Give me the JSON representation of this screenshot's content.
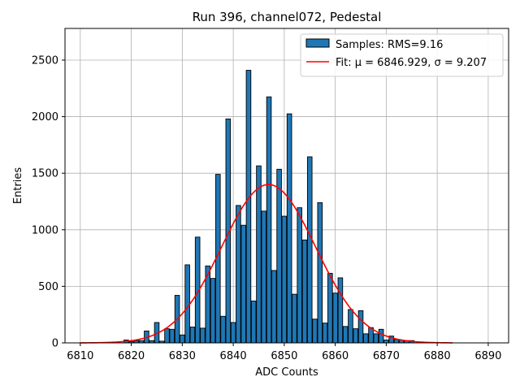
{
  "chart_data": {
    "type": "bar",
    "title": "Run 396, channel072, Pedestal",
    "xlabel": "ADC Counts",
    "ylabel": "Entries",
    "xlim": [
      6807,
      6894
    ],
    "ylim": [
      0,
      2780
    ],
    "xticks": [
      6810,
      6820,
      6830,
      6840,
      6850,
      6860,
      6870,
      6880,
      6890
    ],
    "yticks": [
      0,
      500,
      1000,
      1500,
      2000,
      2500
    ],
    "grid": true,
    "legend_position": "top-right",
    "legend": [
      {
        "label": "Samples: RMS=9.16",
        "kind": "patch",
        "color": "#1f77b4"
      },
      {
        "label": "Fit: μ = 6846.929, σ = 9.207",
        "kind": "line",
        "color": "#ff0000"
      }
    ],
    "series": [
      {
        "name": "Samples: RMS=9.16",
        "type": "histogram",
        "color": "#1f77b4",
        "edgecolor": "#000000",
        "bin_width": 0.9,
        "x": [
          6819,
          6820,
          6821,
          6822,
          6823,
          6824,
          6825,
          6826,
          6827,
          6828,
          6829,
          6830,
          6831,
          6832,
          6833,
          6834,
          6835,
          6836,
          6837,
          6838,
          6839,
          6840,
          6841,
          6842,
          6843,
          6844,
          6845,
          6846,
          6847,
          6848,
          6849,
          6850,
          6851,
          6852,
          6853,
          6854,
          6855,
          6856,
          6857,
          6858,
          6859,
          6860,
          6861,
          6862,
          6863,
          6864,
          6865,
          6866,
          6867,
          6868,
          6869,
          6870,
          6871,
          6872,
          6873,
          6874,
          6875
        ],
        "values": [
          25,
          10,
          20,
          20,
          105,
          20,
          180,
          15,
          125,
          120,
          420,
          70,
          690,
          140,
          935,
          130,
          680,
          570,
          1490,
          235,
          1980,
          180,
          1215,
          1040,
          2410,
          370,
          1565,
          1165,
          2175,
          640,
          1535,
          1120,
          2025,
          430,
          1195,
          910,
          1645,
          210,
          1240,
          175,
          615,
          440,
          575,
          145,
          295,
          125,
          285,
          80,
          135,
          80,
          120,
          25,
          60,
          30,
          25,
          20,
          20
        ]
      },
      {
        "name": "Fit: μ = 6846.929, σ = 9.207",
        "type": "gaussian-fit",
        "color": "#ff0000",
        "mu": 6846.929,
        "sigma": 9.207,
        "amplitude": 1400,
        "x_range": [
          6810,
          6883
        ]
      }
    ]
  }
}
